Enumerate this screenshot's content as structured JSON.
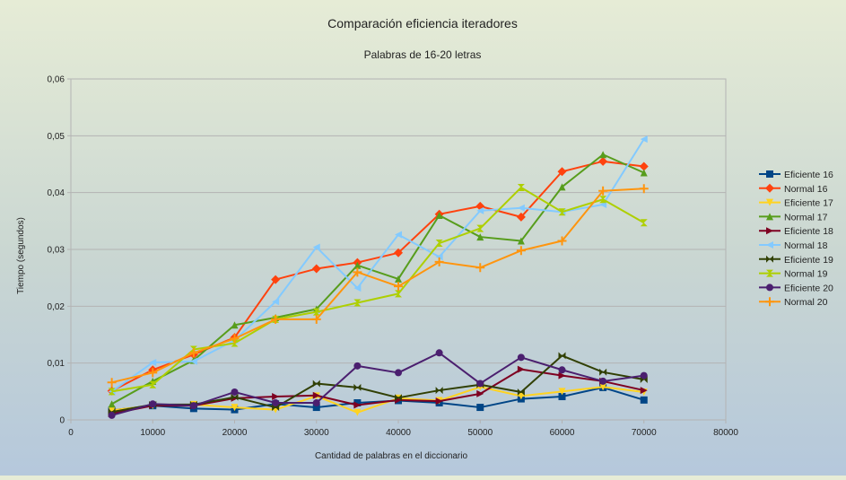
{
  "chart_data": {
    "type": "line",
    "title": "Comparación eficiencia iteradores",
    "subtitle": "Palabras de 16-20 letras",
    "xlabel": "Cantidad de palabras en el diccionario",
    "ylabel": "Tiempo (segundos)",
    "xlim": [
      0,
      80000
    ],
    "ylim": [
      0,
      0.06
    ],
    "x_ticks": [
      0,
      10000,
      20000,
      30000,
      40000,
      50000,
      60000,
      70000,
      80000
    ],
    "x_tick_labels": [
      "0",
      "10000",
      "20000",
      "30000",
      "40000",
      "50000",
      "60000",
      "70000",
      "80000"
    ],
    "y_ticks": [
      0,
      0.01,
      0.02,
      0.03,
      0.04,
      0.05,
      0.06
    ],
    "y_tick_labels": [
      "0",
      "0,01",
      "0,02",
      "0,03",
      "0,04",
      "0,05",
      "0,06"
    ],
    "grid": "horizontal",
    "legend_position": "right",
    "x": [
      5000,
      10000,
      15000,
      20000,
      25000,
      30000,
      35000,
      40000,
      45000,
      50000,
      55000,
      60000,
      65000,
      70000
    ],
    "series": [
      {
        "name": "Eficiente 16",
        "color": "#004586",
        "marker": "square",
        "values": [
          0.0017,
          0.0025,
          0.002,
          0.0018,
          0.0028,
          0.0022,
          0.003,
          0.0034,
          0.003,
          0.0022,
          0.0037,
          0.0041,
          0.0057,
          0.0035
        ]
      },
      {
        "name": "Normal 16",
        "color": "#ff420e",
        "marker": "diamond",
        "values": [
          0.0051,
          0.0088,
          0.0115,
          0.0145,
          0.0247,
          0.0266,
          0.0277,
          0.0294,
          0.0362,
          0.0376,
          0.0357,
          0.0437,
          0.0455,
          0.0446
        ]
      },
      {
        "name": "Eficiente 17",
        "color": "#ffd320",
        "marker": "arrow-down",
        "values": [
          0.0017,
          0.0025,
          0.0027,
          0.0022,
          0.0018,
          0.0042,
          0.0013,
          0.0038,
          0.0034,
          0.0058,
          0.0042,
          0.005,
          0.0058,
          0.0049
        ]
      },
      {
        "name": "Normal 17",
        "color": "#579d1c",
        "marker": "arrow-up",
        "values": [
          0.0028,
          0.0068,
          0.0105,
          0.0167,
          0.018,
          0.0195,
          0.0272,
          0.0248,
          0.036,
          0.0322,
          0.0315,
          0.041,
          0.0467,
          0.0435
        ]
      },
      {
        "name": "Eficiente 18",
        "color": "#7e0021",
        "marker": "arrow-right",
        "values": [
          0.0011,
          0.0025,
          0.0025,
          0.0038,
          0.0041,
          0.0043,
          0.0026,
          0.0035,
          0.0033,
          0.0046,
          0.0089,
          0.0078,
          0.0068,
          0.0052
        ]
      },
      {
        "name": "Normal 18",
        "color": "#83caff",
        "marker": "arrow-left",
        "values": [
          0.005,
          0.0101,
          0.0103,
          0.014,
          0.0208,
          0.0304,
          0.0232,
          0.0326,
          0.0287,
          0.0368,
          0.0373,
          0.0366,
          0.0379,
          0.0494
        ]
      },
      {
        "name": "Eficiente 19",
        "color": "#314004",
        "marker": "bowtie",
        "values": [
          0.0014,
          0.0027,
          0.0027,
          0.004,
          0.0022,
          0.0064,
          0.0057,
          0.0039,
          0.0052,
          0.0062,
          0.0049,
          0.0113,
          0.0084,
          0.0071
        ]
      },
      {
        "name": "Normal 19",
        "color": "#aecf00",
        "marker": "hourglass",
        "values": [
          0.005,
          0.0062,
          0.0124,
          0.0135,
          0.0177,
          0.019,
          0.0206,
          0.0222,
          0.0311,
          0.0337,
          0.0409,
          0.0366,
          0.0388,
          0.0347
        ]
      },
      {
        "name": "Eficiente 20",
        "color": "#4b1f6f",
        "marker": "circle",
        "values": [
          0.0008,
          0.0028,
          0.0025,
          0.0049,
          0.003,
          0.003,
          0.0095,
          0.0083,
          0.0118,
          0.0064,
          0.011,
          0.0088,
          0.0068,
          0.0078
        ]
      },
      {
        "name": "Normal 20",
        "color": "#ff950e",
        "marker": "dash",
        "values": [
          0.0066,
          0.0083,
          0.0118,
          0.0143,
          0.0177,
          0.0177,
          0.026,
          0.0235,
          0.0278,
          0.0268,
          0.0298,
          0.0315,
          0.0403,
          0.0407
        ]
      }
    ]
  }
}
